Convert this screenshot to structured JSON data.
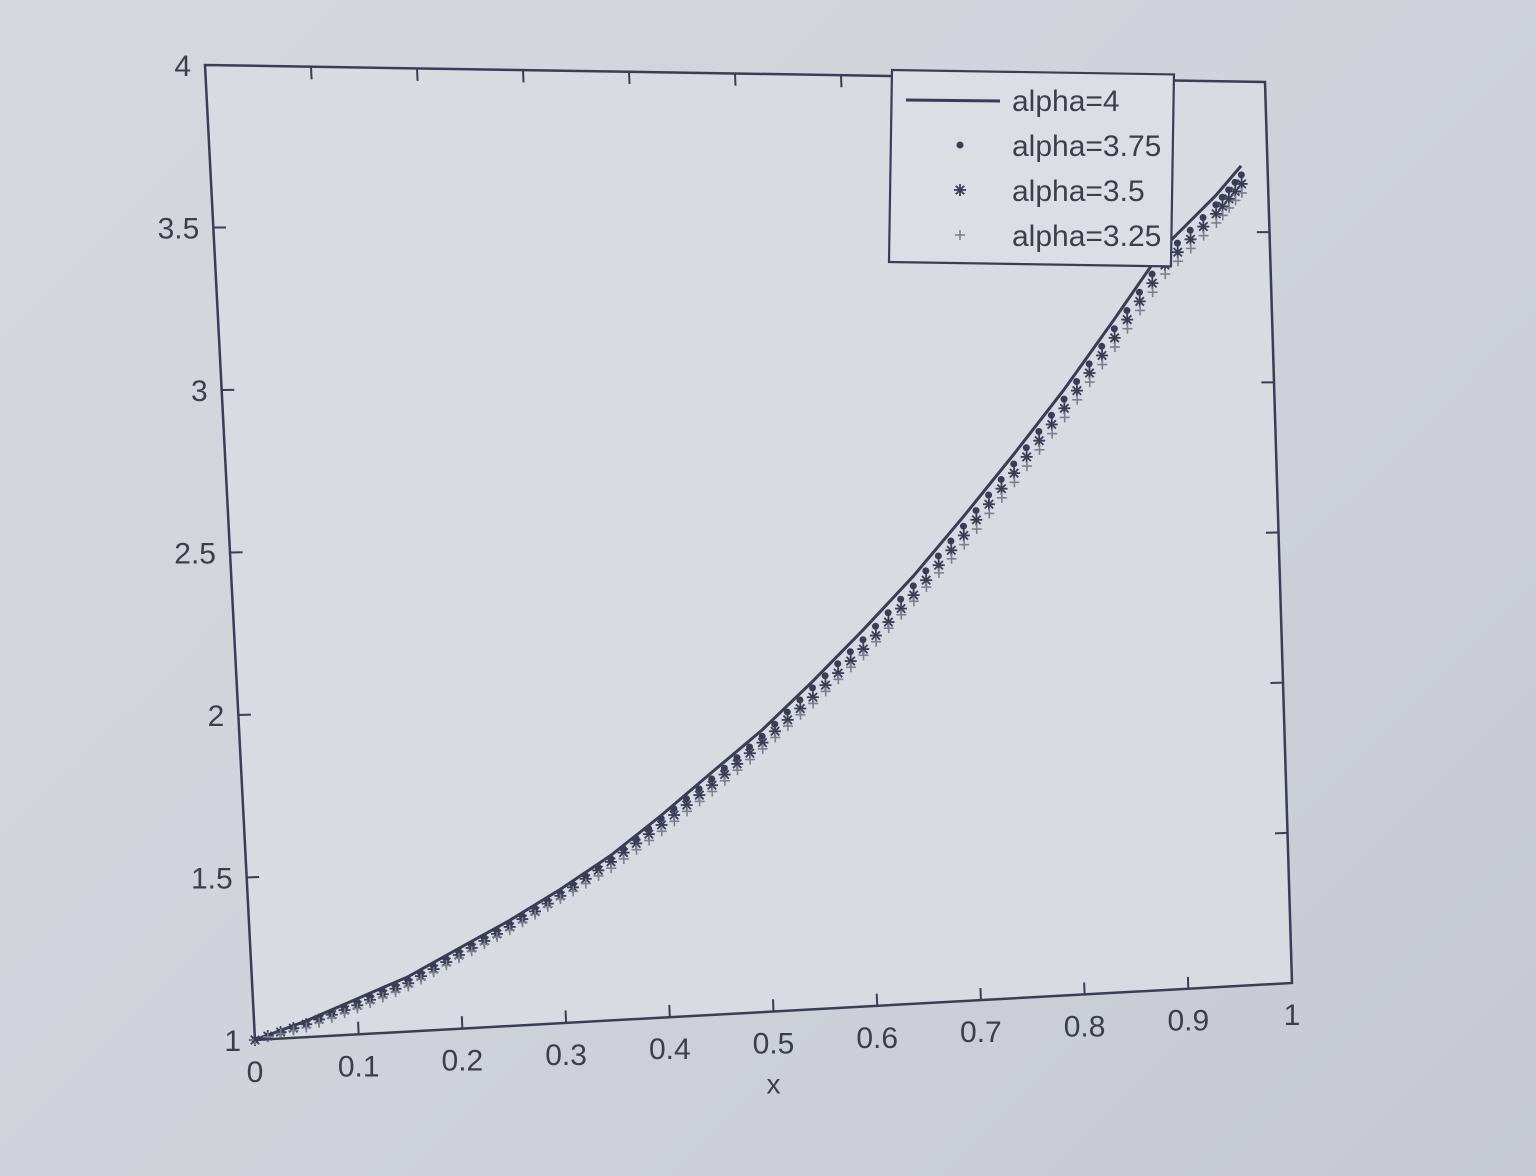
{
  "chart_data": {
    "type": "line",
    "title": "",
    "xlabel": "x",
    "ylabel": "",
    "xlim": [
      0,
      1
    ],
    "ylim": [
      1,
      4
    ],
    "xticks": [
      "0",
      "0.1",
      "0.2",
      "0.3",
      "0.4",
      "0.5",
      "0.6",
      "0.7",
      "0.8",
      "0.9",
      "1"
    ],
    "yticks": [
      "1",
      "1.5",
      "2",
      "2.5",
      "3",
      "3.5",
      "4"
    ],
    "grid": false,
    "legend_position": "top-right",
    "line_color": "#3a3d55",
    "x": [
      0,
      0.05,
      0.1,
      0.15,
      0.2,
      0.25,
      0.3,
      0.35,
      0.4,
      0.45,
      0.5,
      0.55,
      0.6,
      0.65,
      0.7,
      0.75,
      0.8,
      0.85,
      0.9,
      0.95,
      0.975
    ],
    "series": [
      {
        "name": "alpha=4",
        "marker": "line",
        "values": [
          1.0,
          1.05,
          1.11,
          1.17,
          1.25,
          1.33,
          1.42,
          1.52,
          1.64,
          1.77,
          1.9,
          2.05,
          2.21,
          2.38,
          2.57,
          2.77,
          2.98,
          3.21,
          3.45,
          3.62,
          3.72
        ]
      },
      {
        "name": "alpha=3.75",
        "marker": "dot",
        "values": [
          1.0,
          1.04,
          1.1,
          1.16,
          1.24,
          1.32,
          1.41,
          1.51,
          1.63,
          1.75,
          1.88,
          2.03,
          2.18,
          2.35,
          2.54,
          2.74,
          2.95,
          3.18,
          3.42,
          3.59,
          3.69
        ]
      },
      {
        "name": "alpha=3.5",
        "marker": "star",
        "values": [
          1.0,
          1.04,
          1.09,
          1.15,
          1.23,
          1.31,
          1.4,
          1.5,
          1.61,
          1.73,
          1.86,
          2.0,
          2.15,
          2.32,
          2.51,
          2.71,
          2.92,
          3.15,
          3.39,
          3.56,
          3.66
        ]
      },
      {
        "name": "alpha=3.25",
        "marker": "plus",
        "values": [
          1.0,
          1.03,
          1.08,
          1.14,
          1.22,
          1.3,
          1.39,
          1.48,
          1.59,
          1.71,
          1.84,
          1.98,
          2.13,
          2.3,
          2.48,
          2.68,
          2.89,
          3.12,
          3.36,
          3.53,
          3.63
        ]
      }
    ]
  }
}
